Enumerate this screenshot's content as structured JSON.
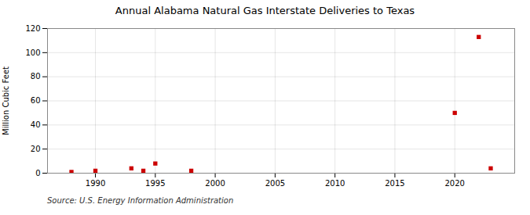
{
  "chart_data": {
    "type": "scatter",
    "title": "Annual Alabama Natural Gas Interstate Deliveries to Texas",
    "ylabel": "Million Cubic Feet",
    "annotation": "Source: U.S. Energy Information Administration",
    "x": [
      1988,
      1990,
      1993,
      1994,
      1995,
      1998,
      2020,
      2022,
      2023
    ],
    "values": [
      1,
      2,
      4,
      2,
      8,
      2,
      50,
      113,
      4
    ],
    "color": "#cc0000",
    "marker": "square",
    "xlim": [
      1986,
      2025
    ],
    "xticks": [
      1990,
      1995,
      2000,
      2005,
      2010,
      2015,
      2020
    ],
    "ylim": [
      0,
      120
    ],
    "yticks": [
      0,
      20,
      40,
      60,
      80,
      100,
      120
    ],
    "grid": true
  }
}
